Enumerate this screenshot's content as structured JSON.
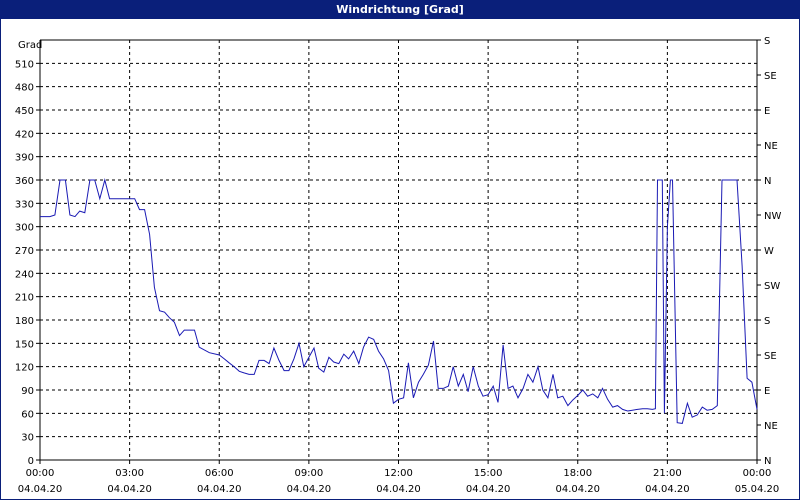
{
  "title": "Windrichtung [Grad]",
  "colors": {
    "titlebar": "#0a1f7a",
    "line": "#1a1ab4",
    "grid": "#000000"
  },
  "chart_data": {
    "type": "line",
    "title": "Windrichtung [Grad]",
    "ylabel": "Grad",
    "ylim": [
      0,
      540
    ],
    "xlim_hours": [
      0,
      24
    ],
    "grid": true,
    "y_ticks": [
      0,
      30,
      60,
      90,
      120,
      150,
      180,
      210,
      240,
      270,
      300,
      330,
      360,
      390,
      420,
      450,
      480,
      510
    ],
    "right_axis": {
      "labels": [
        {
          "value": 0,
          "label": "N"
        },
        {
          "value": 45,
          "label": "NE"
        },
        {
          "value": 90,
          "label": "E"
        },
        {
          "value": 135,
          "label": "SE"
        },
        {
          "value": 180,
          "label": "S"
        },
        {
          "value": 225,
          "label": "SW"
        },
        {
          "value": 270,
          "label": "W"
        },
        {
          "value": 315,
          "label": "NW"
        },
        {
          "value": 360,
          "label": "N"
        },
        {
          "value": 405,
          "label": "NE"
        },
        {
          "value": 450,
          "label": "E"
        },
        {
          "value": 495,
          "label": "SE"
        },
        {
          "value": 540,
          "label": "S"
        }
      ]
    },
    "x_ticks": [
      {
        "hour": 0,
        "time": "00:00",
        "date": "04.04.20"
      },
      {
        "hour": 3,
        "time": "03:00",
        "date": "04.04.20"
      },
      {
        "hour": 6,
        "time": "06:00",
        "date": "04.04.20"
      },
      {
        "hour": 9,
        "time": "09:00",
        "date": "04.04.20"
      },
      {
        "hour": 12,
        "time": "12:00",
        "date": "04.04.20"
      },
      {
        "hour": 15,
        "time": "15:00",
        "date": "04.04.20"
      },
      {
        "hour": 18,
        "time": "18:00",
        "date": "04.04.20"
      },
      {
        "hour": 21,
        "time": "21:00",
        "date": "04.04.20"
      },
      {
        "hour": 24,
        "time": "00:00",
        "date": "05.04.20"
      }
    ],
    "series": [
      {
        "x": [
          0,
          0.33,
          0.5,
          0.67,
          0.85,
          1.0,
          1.17,
          1.33,
          1.5,
          1.67,
          1.83,
          2.0,
          2.17,
          2.33,
          2.67,
          3.0,
          3.17,
          3.33,
          3.5,
          3.67,
          3.83,
          4.0,
          4.17,
          4.33,
          4.5,
          4.67,
          4.83,
          5.0,
          5.17,
          5.33,
          5.67,
          6.0,
          6.17,
          6.33,
          6.5,
          6.67,
          6.83,
          7.0,
          7.17,
          7.33,
          7.5,
          7.67,
          7.83,
          8.0,
          8.17,
          8.33,
          8.5,
          8.67,
          8.83,
          9.0,
          9.17,
          9.33,
          9.5,
          9.67,
          9.83,
          10.0,
          10.17,
          10.33,
          10.5,
          10.67,
          10.83,
          11.0,
          11.17,
          11.33,
          11.5,
          11.67,
          11.83,
          12.0,
          12.17,
          12.33,
          12.5,
          12.67,
          12.83,
          13.0,
          13.17,
          13.33,
          13.5,
          13.67,
          13.83,
          14.0,
          14.17,
          14.33,
          14.5,
          14.67,
          14.83,
          15.0,
          15.17,
          15.33,
          15.5,
          15.67,
          15.83,
          16.0,
          16.17,
          16.33,
          16.5,
          16.67,
          16.83,
          17.0,
          17.17,
          17.33,
          17.5,
          17.67,
          17.83,
          18.0,
          18.17,
          18.33,
          18.5,
          18.67,
          18.83,
          19.0,
          19.17,
          19.33,
          19.5,
          19.67,
          19.83,
          20.0,
          20.17,
          20.33,
          20.5,
          20.6,
          20.67,
          20.83,
          20.9,
          21.0,
          21.1,
          21.17,
          21.33,
          21.5,
          21.67,
          21.83,
          22.0,
          22.17,
          22.33,
          22.5,
          22.67,
          22.83,
          23.0,
          23.17,
          23.33,
          23.5,
          23.67,
          23.83,
          24.0
        ],
        "y": [
          313,
          313,
          315,
          360,
          360,
          315,
          313,
          320,
          318,
          360,
          360,
          336,
          360,
          336,
          336,
          336,
          336,
          322,
          322,
          290,
          222,
          192,
          190,
          183,
          177,
          160,
          167,
          167,
          167,
          145,
          138,
          135,
          130,
          125,
          120,
          114,
          112,
          110,
          110,
          128,
          128,
          124,
          144,
          128,
          115,
          115,
          130,
          150,
          120,
          132,
          144,
          118,
          113,
          132,
          126,
          124,
          136,
          130,
          140,
          124,
          145,
          158,
          155,
          140,
          130,
          115,
          73,
          78,
          80,
          125,
          80,
          100,
          110,
          122,
          153,
          92,
          92,
          95,
          120,
          95,
          110,
          88,
          120,
          95,
          82,
          84,
          95,
          74,
          148,
          92,
          95,
          80,
          92,
          110,
          100,
          120,
          90,
          80,
          110,
          80,
          82,
          70,
          77,
          83,
          90,
          82,
          85,
          80,
          92,
          78,
          68,
          70,
          65,
          63,
          64,
          65,
          66,
          66,
          65,
          66,
          360,
          360,
          60,
          300,
          360,
          360,
          48,
          47,
          73,
          55,
          58,
          68,
          64,
          65,
          70,
          360,
          360,
          360,
          360,
          250,
          105,
          100,
          65
        ]
      }
    ]
  }
}
